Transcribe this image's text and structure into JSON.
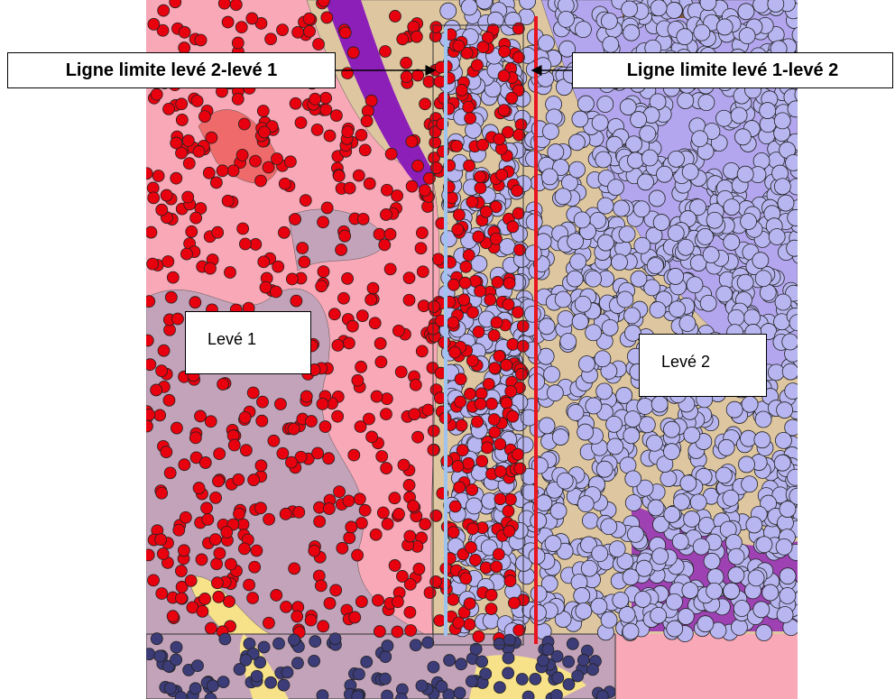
{
  "labels": {
    "left_boundary": "Ligne limite levé 2-levé 1",
    "right_boundary": "Ligne limite levé 1-levé 2",
    "survey_1": "Levé 1",
    "survey_2": "Levé 2"
  }
}
